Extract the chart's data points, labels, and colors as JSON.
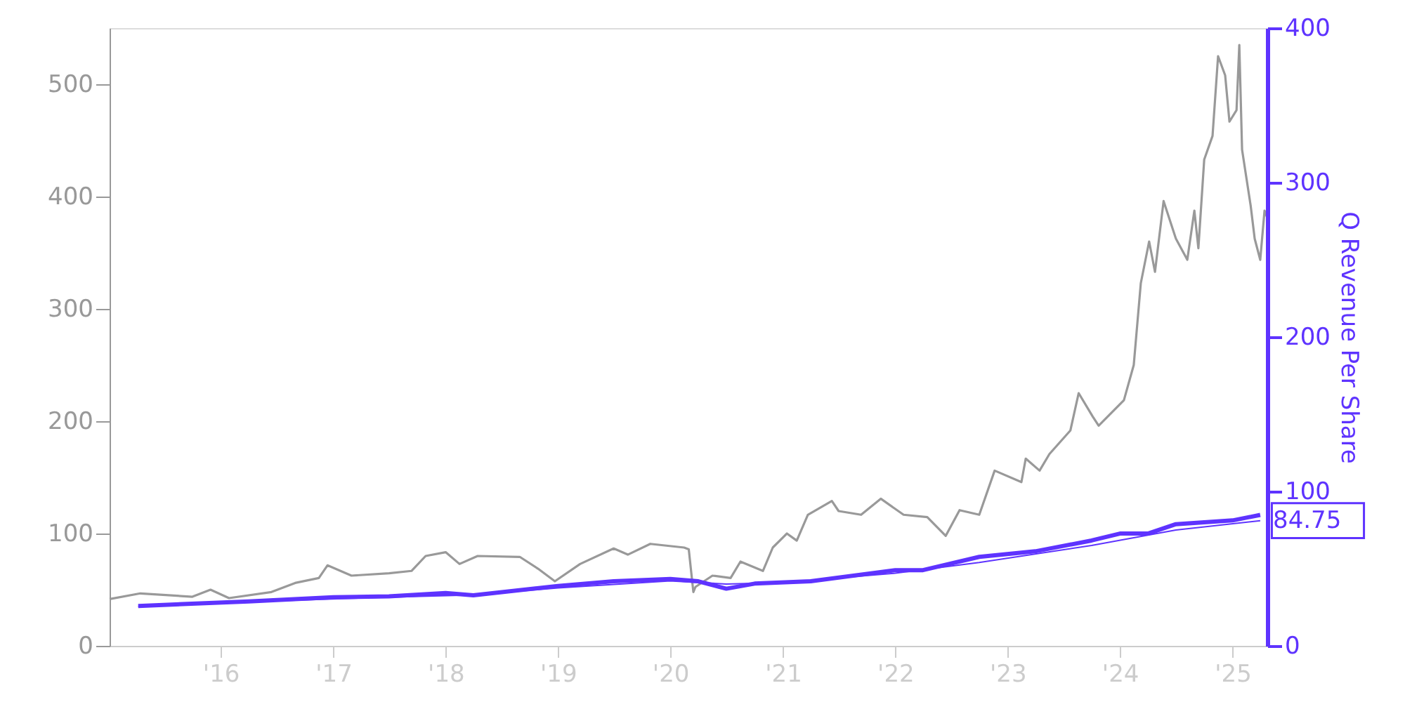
{
  "chart_data": {
    "type": "line",
    "y2label": "Q Revenue Per Share",
    "legend": false,
    "grid": false,
    "xlim": [
      "2015-01-05",
      "2025-04-24"
    ],
    "xticks": [
      {
        "value": "2016-01-01",
        "label": "'16"
      },
      {
        "value": "2017-01-01",
        "label": "'17"
      },
      {
        "value": "2018-01-01",
        "label": "'18"
      },
      {
        "value": "2019-01-01",
        "label": "'19"
      },
      {
        "value": "2020-01-01",
        "label": "'20"
      },
      {
        "value": "2021-01-01",
        "label": "'21"
      },
      {
        "value": "2022-01-01",
        "label": "'22"
      },
      {
        "value": "2023-01-01",
        "label": "'23"
      },
      {
        "value": "2024-01-01",
        "label": "'24"
      },
      {
        "value": "2025-01-01",
        "label": "'25"
      }
    ],
    "ylim": [
      0,
      550
    ],
    "yticks": [
      0,
      100,
      200,
      300,
      400,
      500
    ],
    "y2lim": [
      0,
      400
    ],
    "y2ticks": [
      0,
      100,
      200,
      300,
      400
    ],
    "series": [
      {
        "color": "#999999",
        "x": [
          "2015-01-05",
          "2015-04-15",
          "2015-10-01",
          "2015-11-29",
          "2016-01-28",
          "2016-06-14",
          "2016-08-30",
          "2016-11-15",
          "2016-12-13",
          "2017-03-01",
          "2017-07-01",
          "2017-09-12",
          "2017-10-28",
          "2018-01-01",
          "2018-02-15",
          "2018-04-15",
          "2018-08-30",
          "2018-10-28",
          "2018-12-22",
          "2019-03-14",
          "2019-07-01",
          "2019-08-16",
          "2019-10-28",
          "2020-02-15",
          "2020-03-01",
          "2020-03-16",
          "2020-03-23",
          "2020-05-17",
          "2020-07-15",
          "2020-08-16",
          "2020-10-28",
          "2020-11-29",
          "2021-01-14",
          "2021-02-15",
          "2021-03-23",
          "2021-06-09",
          "2021-07-01",
          "2021-09-12",
          "2021-11-15",
          "2022-01-28",
          "2022-04-15",
          "2022-06-14",
          "2022-07-29",
          "2022-10-01",
          "2022-11-20",
          "2023-02-15",
          "2023-03-01",
          "2023-04-15",
          "2023-05-17",
          "2023-07-24",
          "2023-08-20",
          "2023-10-05",
          "2023-10-24",
          "2024-01-14",
          "2024-02-15",
          "2024-03-09",
          "2024-04-05",
          "2024-04-24",
          "2024-05-22",
          "2024-07-01",
          "2024-08-07",
          "2024-08-30",
          "2024-09-12",
          "2024-10-01",
          "2024-10-28",
          "2024-11-15",
          "2024-12-08",
          "2024-12-22",
          "2025-01-14",
          "2025-01-23",
          "2025-02-01",
          "2025-03-01",
          "2025-03-14",
          "2025-04-01",
          "2025-04-15",
          "2025-04-24"
        ],
        "values": [
          41.6,
          46.7,
          43.7,
          50,
          42.5,
          47.9,
          56,
          60.4,
          71.7,
          62.5,
          64.6,
          66.7,
          80,
          83.4,
          72.9,
          80,
          79.2,
          68.7,
          57.5,
          72.9,
          86.7,
          81.2,
          90.8,
          87.5,
          86,
          47.9,
          52.5,
          62.5,
          60.4,
          75,
          66.7,
          87.5,
          100,
          93.7,
          116.7,
          129,
          120,
          116.7,
          131,
          116.7,
          114.6,
          97.9,
          120.8,
          116.7,
          156,
          145.8,
          166.7,
          156,
          170.8,
          191.7,
          225,
          204,
          196,
          218.7,
          250,
          323,
          360,
          333,
          396,
          362.5,
          343.7,
          387.5,
          354,
          433,
          454,
          525,
          508,
          466.7,
          477,
          535,
          441.7,
          391.7,
          362.5,
          343.7,
          387.5,
          381
        ]
      },
      {
        "color": "#5e33ff",
        "axis": "y2",
        "x": [
          "2015-04-08",
          "2016-04-01",
          "2017-01-01",
          "2017-07-01",
          "2018-01-01",
          "2018-04-01",
          "2019-01-01",
          "2019-07-01",
          "2020-01-01",
          "2020-04-01",
          "2020-07-01",
          "2020-10-01",
          "2021-04-01",
          "2022-01-01",
          "2022-04-01",
          "2022-10-01",
          "2023-04-01",
          "2023-10-01",
          "2024-01-01",
          "2024-04-01",
          "2024-07-01",
          "2025-01-01",
          "2025-04-01"
        ],
        "values": [
          25.8,
          28.8,
          31.5,
          32,
          34.2,
          32.7,
          38.8,
          41.8,
          43.3,
          41.8,
          37,
          40.3,
          41.8,
          49,
          49,
          57.6,
          61.2,
          68.2,
          72.7,
          72.7,
          78.8,
          81.2,
          84.75
        ]
      },
      {
        "color": "#5e33ff",
        "axis": "y2",
        "x": [
          "2015-04-08",
          "2016-04-01",
          "2017-04-01",
          "2018-04-01",
          "2019-01-01",
          "2020-01-01",
          "2020-07-01",
          "2021-01-01",
          "2022-01-01",
          "2022-10-01",
          "2023-10-01",
          "2024-07-01",
          "2025-04-01"
        ],
        "values": [
          25.5,
          28.5,
          31,
          33,
          37.5,
          42,
          40,
          41,
          47,
          54,
          65,
          75,
          81
        ]
      }
    ],
    "annotations": [
      "84.75"
    ]
  }
}
